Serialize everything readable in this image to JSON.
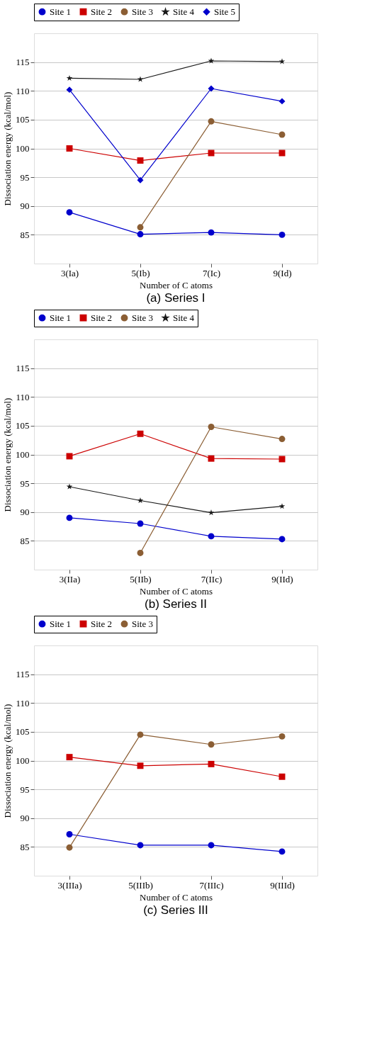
{
  "chart_data": [
    {
      "type": "line",
      "title": "(a)  Series I",
      "xlabel": "Number of C atoms",
      "ylabel": "Dissociation energy (kcal/mol)",
      "categories": [
        "3(Ia)",
        "5(Ib)",
        "7(Ic)",
        "9(Id)"
      ],
      "ylim": [
        80,
        120
      ],
      "yticks": [
        85,
        90,
        95,
        100,
        105,
        110,
        115
      ],
      "grid": "y",
      "legend": "top",
      "series": [
        {
          "name": "Site 1",
          "color": "#0000cc",
          "marker": "circle",
          "values": [
            88.9,
            85.1,
            85.4,
            85.0
          ]
        },
        {
          "name": "Site 2",
          "color": "#cc0000",
          "marker": "square",
          "values": [
            100.0,
            97.9,
            99.2,
            99.2
          ]
        },
        {
          "name": "Site 3",
          "color": "#8b5e34",
          "marker": "circle",
          "values": [
            null,
            86.3,
            104.7,
            102.4
          ]
        },
        {
          "name": "Site 4",
          "color": "#1a1a1a",
          "marker": "star",
          "values": [
            112.2,
            112.0,
            115.2,
            115.1
          ]
        },
        {
          "name": "Site 5",
          "color": "#0000cc",
          "marker": "diamond",
          "values": [
            110.2,
            94.5,
            110.4,
            108.2
          ]
        }
      ]
    },
    {
      "type": "line",
      "title": "(b)  Series II",
      "xlabel": "Number of C atoms",
      "ylabel": "Dissociation energy (kcal/mol)",
      "categories": [
        "3(IIa)",
        "5(IIb)",
        "7(IIc)",
        "9(IId)"
      ],
      "ylim": [
        80,
        120
      ],
      "yticks": [
        85,
        90,
        95,
        100,
        105,
        110,
        115
      ],
      "grid": "y",
      "legend": "top",
      "series": [
        {
          "name": "Site 1",
          "color": "#0000cc",
          "marker": "circle",
          "values": [
            89.0,
            88.0,
            85.8,
            85.3
          ]
        },
        {
          "name": "Site 2",
          "color": "#cc0000",
          "marker": "square",
          "values": [
            99.7,
            103.6,
            99.3,
            99.2
          ]
        },
        {
          "name": "Site 3",
          "color": "#8b5e34",
          "marker": "circle",
          "values": [
            null,
            82.9,
            104.8,
            102.7
          ]
        },
        {
          "name": "Site 4",
          "color": "#1a1a1a",
          "marker": "star",
          "values": [
            94.4,
            92.0,
            89.9,
            91.0
          ]
        }
      ]
    },
    {
      "type": "line",
      "title": "(c) Series III",
      "xlabel": "Number of C atoms",
      "ylabel": "Dissociation energy (kcal/mol)",
      "categories": [
        "3(IIIa)",
        "5(IIIb)",
        "7(IIIc)",
        "9(IIId)"
      ],
      "ylim": [
        80,
        120
      ],
      "yticks": [
        85,
        90,
        95,
        100,
        105,
        110,
        115
      ],
      "grid": "y",
      "legend": "top",
      "series": [
        {
          "name": "Site 1",
          "color": "#0000cc",
          "marker": "circle",
          "values": [
            87.2,
            85.3,
            85.3,
            84.2
          ]
        },
        {
          "name": "Site 2",
          "color": "#cc0000",
          "marker": "square",
          "values": [
            100.6,
            99.1,
            99.4,
            97.2
          ]
        },
        {
          "name": "Site 3",
          "color": "#8b5e34",
          "marker": "circle",
          "values": [
            84.9,
            104.5,
            102.8,
            104.2
          ]
        }
      ]
    }
  ]
}
